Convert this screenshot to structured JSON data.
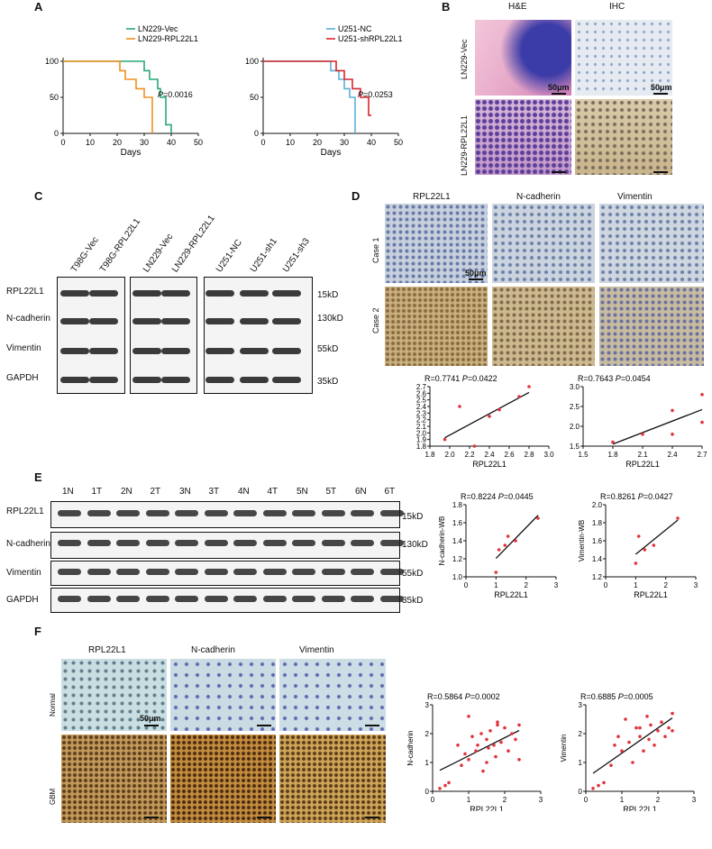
{
  "panels": {
    "A": "A",
    "B": "B",
    "C": "C",
    "D": "D",
    "E": "E",
    "F": "F"
  },
  "panelA": {
    "left": {
      "legend": [
        "LN229-Vec",
        "LN229-RPL22L1"
      ],
      "colors": [
        "#2aa876",
        "#f0901e"
      ],
      "p_label": "P",
      "p_value": "=0.0016",
      "xlabel": "Days",
      "xticks": [
        "0",
        "10",
        "20",
        "30",
        "40",
        "50"
      ],
      "yticks": [
        "0",
        "50",
        "100"
      ]
    },
    "right": {
      "legend": [
        "U251-NC",
        "U251-shRPL22L1"
      ],
      "colors": [
        "#5bb0d8",
        "#d7262b"
      ],
      "p_label": "P",
      "p_value": "=0.0253",
      "xlabel": "Days",
      "xticks": [
        "0",
        "10",
        "20",
        "30",
        "40",
        "50"
      ],
      "yticks": [
        "0",
        "50",
        "100"
      ]
    }
  },
  "panelB": {
    "col_headers": [
      "H&E",
      "IHC"
    ],
    "row_labels": [
      "LN229-Vec",
      "LN229-RPL22L1"
    ],
    "scale": "50μm"
  },
  "panelC": {
    "lanes": [
      "T98G-Vec",
      "T98G-RPL22L1",
      "LN229-Vec",
      "LN229-RPL22L1",
      "U251-NC",
      "U251-sh1",
      "U251-sh3"
    ],
    "rows": [
      "RPL22L1",
      "N-cadherin",
      "Vimentin",
      "GAPDH"
    ],
    "sizes": [
      "15kD",
      "130kD",
      "55kD",
      "35kD"
    ]
  },
  "panelD": {
    "col_headers": [
      "RPL22L1",
      "N-cadherin",
      "Vimentin"
    ],
    "row_labels": [
      "Case 1",
      "Case 2"
    ],
    "scale": "50μm",
    "plot1": {
      "R": "R=0.7741",
      "P_label": "P",
      "P": "=0.0422",
      "xlabel": "RPL22L1",
      "xticks": [
        "1.8",
        "2.0",
        "2.2",
        "2.4",
        "2.6",
        "2.8",
        "3.0"
      ],
      "yticks": [
        "1.8",
        "1.9",
        "2.0",
        "2.1",
        "2.2",
        "2.3",
        "2.4",
        "2.5",
        "2.6",
        "2.7"
      ]
    },
    "plot2": {
      "R": "R=0.7643",
      "P_label": "P",
      "P": "=0.0454",
      "xlabel": "RPL22L1",
      "xticks": [
        "1.5",
        "1.8",
        "2.1",
        "2.4",
        "2.7"
      ],
      "yticks": [
        "1.5",
        "2.0",
        "2.5",
        "3.0"
      ]
    }
  },
  "panelE": {
    "lanes": [
      "1N",
      "1T",
      "2N",
      "2T",
      "3N",
      "3T",
      "4N",
      "4T",
      "5N",
      "5T",
      "6N",
      "6T"
    ],
    "rows": [
      "RPL22L1",
      "N-cadherin",
      "Vimentin",
      "GAPDH"
    ],
    "sizes": [
      "15kD",
      "130kD",
      "55kD",
      "35kD"
    ],
    "plot1": {
      "R": "R=0.8224",
      "P_label": "P",
      "P": "=0.0445",
      "xlabel": "RPL22L1",
      "ylabel": "N-cadherin-WB",
      "xticks": [
        "0",
        "1",
        "2",
        "3"
      ],
      "yticks": [
        "1.0",
        "1.2",
        "1.4",
        "1.6",
        "1.8"
      ]
    },
    "plot2": {
      "R": "R=0.8261",
      "P_label": "P",
      "P": "=0.0427",
      "xlabel": "RPL22L1",
      "ylabel": "Vimentin-WB",
      "xticks": [
        "0",
        "1",
        "2",
        "3"
      ],
      "yticks": [
        "1.2",
        "1.4",
        "1.6",
        "1.8",
        "2.0"
      ]
    }
  },
  "panelF": {
    "col_headers": [
      "RPL22L1",
      "N-cadherin",
      "Vimentin"
    ],
    "row_labels": [
      "Normal",
      "GBM"
    ],
    "scale": "50μm",
    "plot1": {
      "R": "R=0.5864",
      "P_label": "P",
      "P": "=0.0002",
      "xlabel": "RPL22L1",
      "ylabel": "N-cadherin",
      "xticks": [
        "0",
        "1",
        "2",
        "3"
      ],
      "yticks": [
        "0",
        "1",
        "2",
        "3"
      ]
    },
    "plot2": {
      "R": "R=0.6885",
      "P_label": "P",
      "P": "=0.0005",
      "xlabel": "RPL22L1",
      "ylabel": "Vimentin",
      "xticks": [
        "0",
        "1",
        "2",
        "3"
      ],
      "yticks": [
        "0",
        "1",
        "2",
        "3"
      ]
    }
  },
  "chart_data": [
    {
      "type": "line",
      "name": "survival-LN229",
      "xlabel": "Days",
      "xlim": [
        0,
        50
      ],
      "ylim": [
        0,
        100
      ],
      "series": [
        {
          "name": "LN229-Vec",
          "x": [
            0,
            30,
            30,
            32,
            32,
            35,
            35,
            36,
            36,
            38,
            38,
            40,
            40
          ],
          "y": [
            100,
            100,
            87,
            87,
            75,
            75,
            62,
            62,
            50,
            50,
            12,
            12,
            0
          ]
        },
        {
          "name": "LN229-RPL22L1",
          "x": [
            0,
            21,
            21,
            23,
            23,
            27,
            27,
            30,
            30,
            33,
            33
          ],
          "y": [
            100,
            100,
            87,
            87,
            75,
            75,
            62,
            62,
            50,
            50,
            0
          ]
        }
      ]
    },
    {
      "type": "line",
      "name": "survival-U251",
      "xlabel": "Days",
      "xlim": [
        0,
        50
      ],
      "ylim": [
        0,
        100
      ],
      "series": [
        {
          "name": "U251-NC",
          "x": [
            0,
            25,
            25,
            28,
            28,
            30,
            30,
            32,
            32,
            34,
            34
          ],
          "y": [
            100,
            100,
            87,
            87,
            75,
            75,
            62,
            62,
            50,
            50,
            0
          ]
        },
        {
          "name": "U251-shRPL22L1",
          "x": [
            0,
            27,
            27,
            30,
            30,
            33,
            33,
            36,
            36,
            39,
            39,
            40
          ],
          "y": [
            100,
            100,
            87,
            87,
            75,
            75,
            62,
            62,
            50,
            50,
            25,
            25
          ]
        }
      ]
    },
    {
      "type": "scatter",
      "xlim": [
        1.8,
        3.0
      ],
      "ylim": [
        1.8,
        2.7
      ],
      "x": [
        1.95,
        2.1,
        2.25,
        2.4,
        2.5,
        2.7,
        2.8
      ],
      "y": [
        1.9,
        2.4,
        1.8,
        2.25,
        2.35,
        2.55,
        2.7
      ]
    },
    {
      "type": "scatter",
      "xlim": [
        1.5,
        2.7
      ],
      "ylim": [
        1.5,
        3.0
      ],
      "x": [
        1.8,
        2.1,
        2.4,
        2.4,
        2.7,
        2.7
      ],
      "y": [
        1.6,
        1.8,
        2.4,
        1.8,
        2.8,
        2.1
      ]
    },
    {
      "type": "scatter",
      "xlim": [
        0,
        3
      ],
      "ylim": [
        1.0,
        1.8
      ],
      "x": [
        1.0,
        1.1,
        1.3,
        1.4,
        1.65,
        2.4
      ],
      "y": [
        1.05,
        1.3,
        1.35,
        1.45,
        1.4,
        1.65
      ]
    },
    {
      "type": "scatter",
      "xlim": [
        0,
        3
      ],
      "ylim": [
        1.2,
        2.0
      ],
      "x": [
        1.0,
        1.1,
        1.3,
        1.6,
        2.4
      ],
      "y": [
        1.35,
        1.65,
        1.5,
        1.55,
        1.85
      ]
    },
    {
      "type": "scatter",
      "xlim": [
        0,
        3
      ],
      "ylim": [
        0,
        3
      ],
      "x": [
        0.2,
        0.35,
        0.45,
        0.7,
        0.8,
        0.9,
        1.0,
        1.1,
        1.2,
        1.25,
        1.35,
        1.4,
        1.5,
        1.55,
        1.6,
        1.7,
        1.75,
        1.8,
        1.9,
        2.0,
        2.1,
        2.2,
        2.3,
        2.4,
        2.4,
        1.8,
        1.5,
        1.0
      ],
      "y": [
        0.1,
        0.2,
        0.3,
        1.6,
        0.9,
        1.3,
        1.1,
        1.9,
        1.4,
        1.6,
        2.0,
        0.7,
        1.8,
        1.5,
        2.1,
        1.6,
        1.2,
        2.3,
        1.7,
        2.2,
        1.4,
        2.0,
        1.8,
        2.3,
        1.1,
        2.4,
        1.0,
        2.6
      ]
    },
    {
      "type": "scatter",
      "xlim": [
        0,
        3
      ],
      "ylim": [
        0,
        3
      ],
      "x": [
        0.2,
        0.35,
        0.5,
        0.7,
        0.8,
        0.9,
        1.0,
        1.1,
        1.2,
        1.3,
        1.4,
        1.5,
        1.6,
        1.7,
        1.75,
        1.8,
        1.9,
        2.0,
        2.1,
        2.2,
        2.3,
        2.4,
        2.4,
        1.5
      ],
      "y": [
        0.1,
        0.2,
        0.3,
        0.9,
        1.6,
        1.9,
        1.4,
        2.5,
        1.7,
        1.0,
        2.2,
        1.9,
        1.4,
        2.6,
        1.8,
        2.3,
        1.6,
        2.1,
        2.4,
        1.9,
        2.2,
        2.7,
        2.1,
        2.2
      ]
    }
  ]
}
